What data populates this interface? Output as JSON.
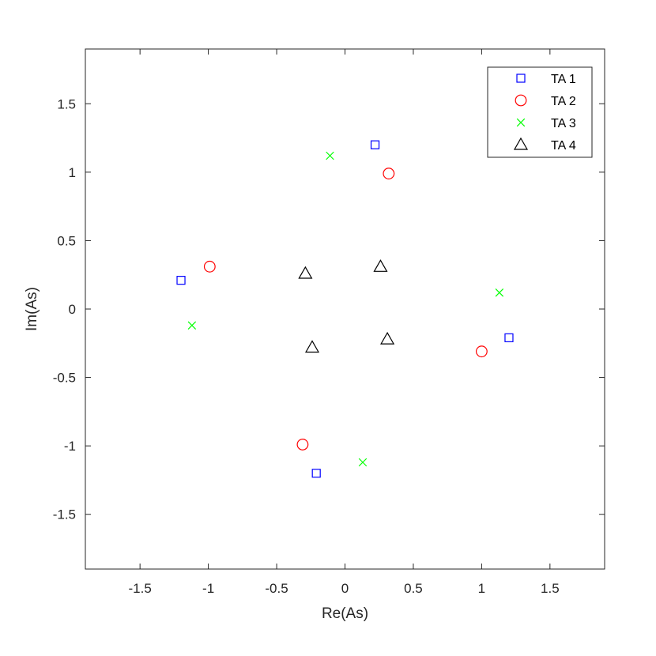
{
  "chart_data": {
    "type": "scatter",
    "title": "",
    "xlabel": "Re(As)",
    "ylabel": "Im(As)",
    "xlim": [
      -1.9,
      1.9
    ],
    "ylim": [
      -1.9,
      1.9
    ],
    "xticks": [
      -1.5,
      -1,
      -0.5,
      0,
      0.5,
      1,
      1.5
    ],
    "yticks": [
      -1.5,
      -1,
      -0.5,
      0,
      0.5,
      1,
      1.5
    ],
    "xtick_labels": [
      "-1.5",
      "-1",
      "-0.5",
      "0",
      "0.5",
      "1",
      "1.5"
    ],
    "ytick_labels": [
      "-1.5",
      "-1",
      "-0.5",
      "0",
      "0.5",
      "1",
      "1.5"
    ],
    "grid": false,
    "legend_position": "top-right",
    "series": [
      {
        "name": "TA 1",
        "marker": "square-icon",
        "color": "#0000ff",
        "points": [
          [
            0.22,
            1.2
          ],
          [
            -1.2,
            0.21
          ],
          [
            1.2,
            -0.21
          ],
          [
            -0.21,
            -1.2
          ]
        ]
      },
      {
        "name": "TA 2",
        "marker": "circle-icon",
        "color": "#ff0000",
        "points": [
          [
            0.32,
            0.99
          ],
          [
            -0.99,
            0.31
          ],
          [
            1.0,
            -0.31
          ],
          [
            -0.31,
            -0.99
          ]
        ]
      },
      {
        "name": "TA 3",
        "marker": "cross-icon",
        "color": "#00ff00",
        "points": [
          [
            -0.11,
            1.12
          ],
          [
            -1.12,
            -0.12
          ],
          [
            1.13,
            0.12
          ],
          [
            0.13,
            -1.12
          ]
        ]
      },
      {
        "name": "TA 4",
        "marker": "triangle-icon",
        "color": "#000000",
        "points": [
          [
            -0.29,
            0.26
          ],
          [
            0.26,
            0.31
          ],
          [
            -0.24,
            -0.28
          ],
          [
            0.31,
            -0.22
          ]
        ]
      }
    ]
  }
}
